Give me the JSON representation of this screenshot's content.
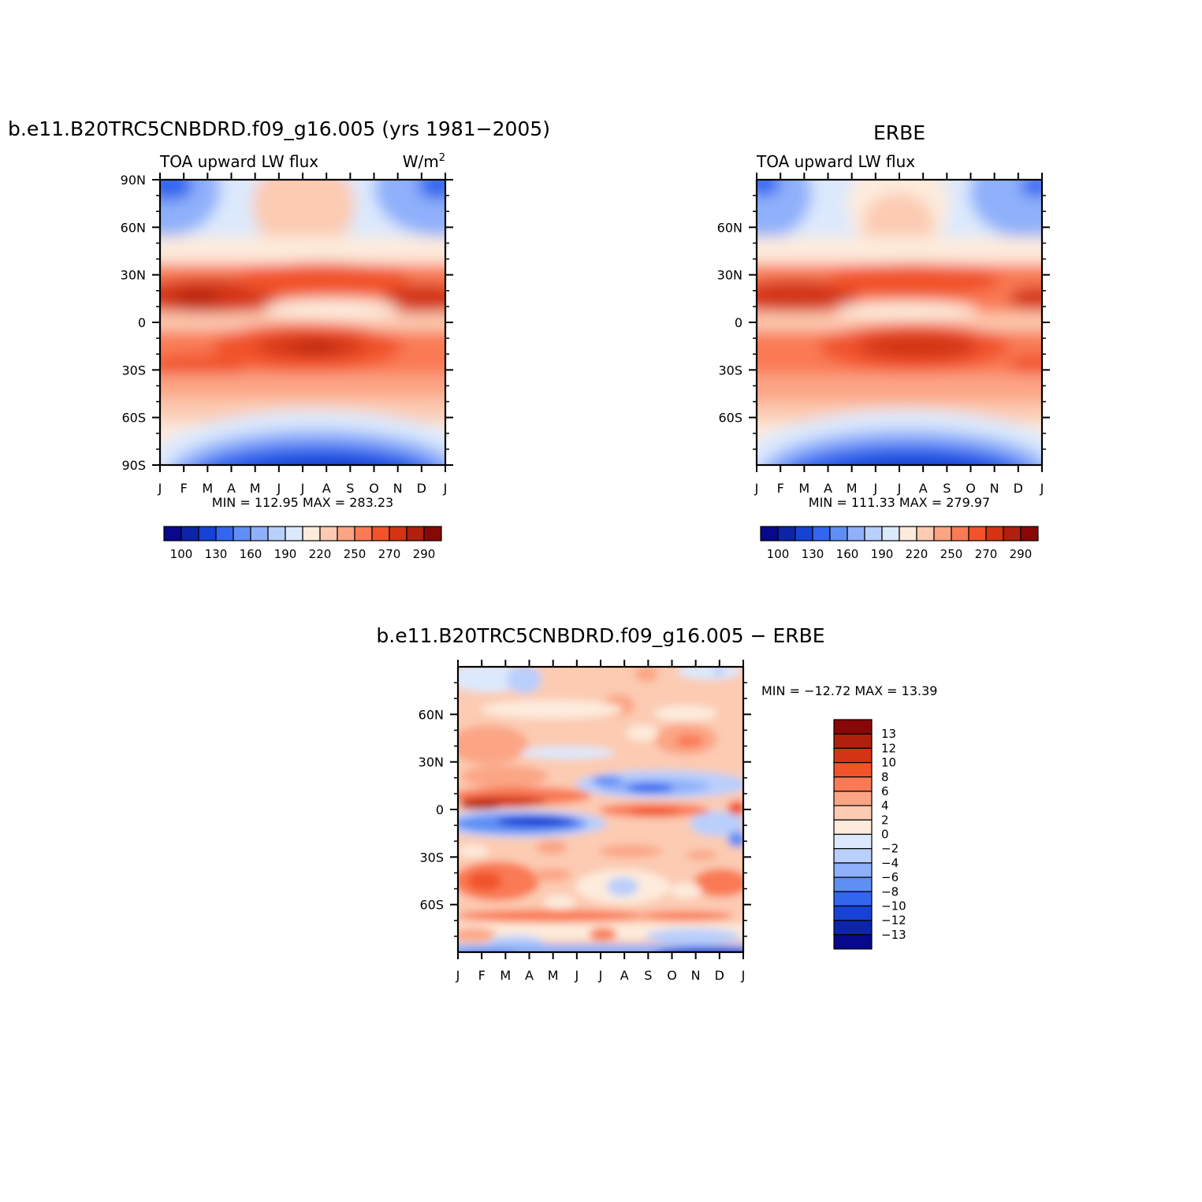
{
  "panels": [
    {
      "id": "model",
      "title": "b.e11.B20TRC5CNBDRD.f09_g16.005 (yrs 1981−2005)",
      "left_string": "TOA upward LW flux",
      "right_string": "W/m",
      "right_superscript": "2",
      "y_ticks": [
        "90N",
        "60N",
        "30N",
        "0",
        "30S",
        "60S",
        "90S"
      ],
      "x_ticks": [
        "J",
        "F",
        "M",
        "A",
        "M",
        "J",
        "J",
        "A",
        "S",
        "O",
        "N",
        "D",
        "J"
      ],
      "stats": "MIN = 112.95 MAX = 283.23",
      "colorbar_labels": [
        "100",
        "130",
        "160",
        "190",
        "220",
        "250",
        "270",
        "290"
      ]
    },
    {
      "id": "obs",
      "title": "ERBE",
      "left_string": "TOA upward LW flux",
      "y_ticks": [
        "60N",
        "30N",
        "0",
        "30S",
        "60S"
      ],
      "x_ticks": [
        "J",
        "F",
        "M",
        "A",
        "M",
        "J",
        "J",
        "A",
        "S",
        "O",
        "N",
        "D",
        "J"
      ],
      "stats": "MIN = 111.33 MAX = 279.97",
      "colorbar_labels": [
        "100",
        "130",
        "160",
        "190",
        "220",
        "250",
        "270",
        "290"
      ]
    },
    {
      "id": "diff",
      "title": "b.e11.B20TRC5CNBDRD.f09_g16.005 − ERBE",
      "y_ticks": [
        "60N",
        "30N",
        "0",
        "30S",
        "60S"
      ],
      "x_ticks": [
        "J",
        "F",
        "M",
        "A",
        "M",
        "J",
        "J",
        "A",
        "S",
        "O",
        "N",
        "D",
        "J"
      ],
      "stats": "MIN = −12.72 MAX =  13.39",
      "colorbar_labels": [
        "13",
        "12",
        "10",
        "8",
        "6",
        "4",
        "2",
        "0",
        "−2",
        "−4",
        "−6",
        "−8",
        "−10",
        "−12",
        "−13"
      ]
    }
  ],
  "colors": {
    "flux_palette": [
      "#08088c",
      "#0c24a8",
      "#1742d6",
      "#3366ee",
      "#5f8ff5",
      "#8fb0fa",
      "#b9cffc",
      "#dce9fd",
      "#fdebdc",
      "#fccbb2",
      "#fba585",
      "#f97a54",
      "#f1532a",
      "#d33414",
      "#b0200c",
      "#880808"
    ],
    "diff_palette": [
      "#880808",
      "#b0200c",
      "#d33414",
      "#f1532a",
      "#f97a54",
      "#fba585",
      "#fccbb2",
      "#fdebdc",
      "#dce9fd",
      "#b9cffc",
      "#8fb0fa",
      "#5f8ff5",
      "#3366ee",
      "#1742d6",
      "#0c24a8",
      "#08088c"
    ]
  },
  "chart_data": [
    {
      "type": "heatmap",
      "title": "b.e11.B20TRC5CNBDRD.f09_g16.005 (yrs 1981−2005)",
      "xlabel": "",
      "ylabel": "",
      "x": [
        "J",
        "F",
        "M",
        "A",
        "M",
        "J",
        "J",
        "A",
        "S",
        "O",
        "N",
        "D",
        "J"
      ],
      "ylim": [
        -90,
        90
      ],
      "levels": [
        100,
        110,
        120,
        130,
        140,
        150,
        160,
        170,
        180,
        190,
        200,
        210,
        220,
        230,
        240,
        250,
        260,
        270,
        280,
        290
      ],
      "min": 112.95,
      "max": 283.23,
      "units": "W/m2"
    },
    {
      "type": "heatmap",
      "title": "ERBE",
      "x": [
        "J",
        "F",
        "M",
        "A",
        "M",
        "J",
        "J",
        "A",
        "S",
        "O",
        "N",
        "D",
        "J"
      ],
      "ylim": [
        -90,
        90
      ],
      "min": 111.33,
      "max": 279.97
    },
    {
      "type": "heatmap",
      "title": "b.e11.B20TRC5CNBDRD.f09_g16.005 − ERBE",
      "x": [
        "J",
        "F",
        "M",
        "A",
        "M",
        "J",
        "J",
        "A",
        "S",
        "O",
        "N",
        "D",
        "J"
      ],
      "ylim": [
        -90,
        90
      ],
      "levels": [
        -13,
        -12,
        -10,
        -8,
        -6,
        -4,
        -2,
        0,
        2,
        4,
        6,
        8,
        10,
        12,
        13
      ],
      "min": -12.72,
      "max": 13.39
    }
  ]
}
